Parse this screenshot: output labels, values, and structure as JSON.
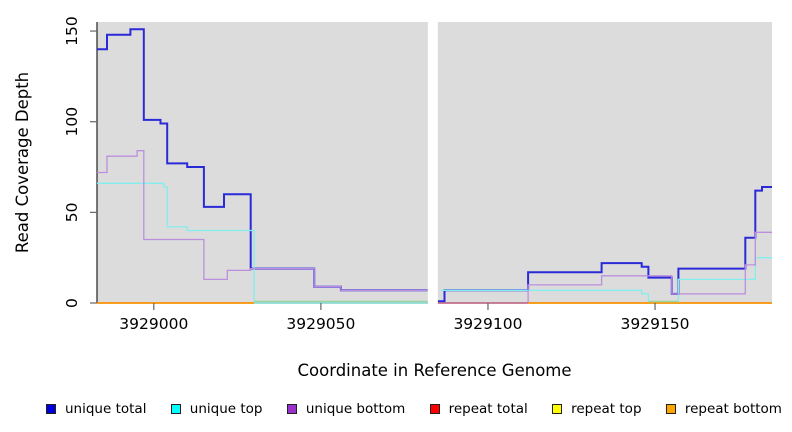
{
  "chart_data": {
    "type": "line",
    "subtype": "step-coverage-plot",
    "title": "",
    "xlabel": "Coordinate in Reference Genome",
    "ylabel": "Read Coverage Depth",
    "xlim": [
      3928983,
      3929185
    ],
    "ylim": [
      0,
      155
    ],
    "x_ticks": [
      3929000,
      3929050,
      3929100,
      3929150
    ],
    "y_ticks": [
      0,
      50,
      100,
      150
    ],
    "grid": false,
    "legend_position": "bottom",
    "panel_bg": "#DCDCDC",
    "axis_color": "#222222",
    "tick_color": "#666666",
    "gap_x": [
      3929082,
      3929085
    ],
    "series": [
      {
        "name": "unique total",
        "line_color": "#2A2AD8",
        "swatch_color": "#0000DC",
        "line_width": 2,
        "runs": [
          {
            "points": [
              [
                3928983,
                140
              ],
              [
                3928986,
                148
              ],
              [
                3928993,
                151
              ],
              [
                3928997,
                101
              ],
              [
                3929002,
                99
              ],
              [
                3929004,
                77
              ],
              [
                3929010,
                75
              ],
              [
                3929015,
                53
              ],
              [
                3929021,
                60
              ],
              [
                3929029,
                19
              ],
              [
                3929048,
                9
              ],
              [
                3929056,
                7
              ]
            ],
            "end": 3929082
          },
          {
            "points": [
              [
                3929085,
                1
              ],
              [
                3929087,
                7
              ],
              [
                3929112,
                17
              ],
              [
                3929134,
                22
              ],
              [
                3929146,
                20
              ],
              [
                3929148,
                14
              ],
              [
                3929155,
                5
              ],
              [
                3929157,
                19
              ],
              [
                3929177,
                36
              ],
              [
                3929180,
                62
              ],
              [
                3929182,
                64
              ]
            ],
            "end": 3929185
          }
        ]
      },
      {
        "name": "unique top",
        "line_color": "#82EEEE",
        "swatch_color": "#00FFFF",
        "line_width": 1.3,
        "runs": [
          {
            "points": [
              [
                3928983,
                66
              ],
              [
                3929003,
                64
              ],
              [
                3929004,
                42
              ],
              [
                3929010,
                40
              ],
              [
                3929030,
                0
              ]
            ],
            "end": 3929082
          },
          {
            "points": [
              [
                3929086,
                7
              ],
              [
                3929146,
                5
              ],
              [
                3929148,
                0
              ],
              [
                3929157,
                13
              ],
              [
                3929180,
                25
              ]
            ],
            "end": 3929185
          }
        ]
      },
      {
        "name": "unique bottom",
        "line_color": "#BB8FDE",
        "swatch_color": "#9932CC",
        "line_width": 1.3,
        "runs": [
          {
            "points": [
              [
                3928983,
                72
              ],
              [
                3928986,
                81
              ],
              [
                3928995,
                84
              ],
              [
                3928997,
                35
              ],
              [
                3929015,
                13
              ],
              [
                3929022,
                18
              ],
              [
                3929029,
                19
              ],
              [
                3929048,
                9
              ],
              [
                3929056,
                7
              ]
            ],
            "end": 3929082
          },
          {
            "points": [
              [
                3929085,
                0
              ],
              [
                3929112,
                10
              ],
              [
                3929134,
                15
              ],
              [
                3929155,
                5
              ],
              [
                3929177,
                21
              ],
              [
                3929180,
                39
              ]
            ],
            "end": 3929185
          }
        ]
      },
      {
        "name": "repeat total",
        "line_color": "#CC6080",
        "swatch_color": "#FF0000",
        "line_width": 1.2,
        "runs": [
          {
            "points": [
              [
                3929085,
                0
              ]
            ],
            "end": 3929112
          }
        ]
      },
      {
        "name": "repeat bottom",
        "line_color": "#FF9808",
        "swatch_color": "#FFA500",
        "line_width": 1.8,
        "runs": [
          {
            "points": [
              [
                3928983,
                0
              ]
            ],
            "end": 3929030
          },
          {
            "points": [
              [
                3929112,
                0
              ]
            ],
            "end": 3929185
          }
        ]
      },
      {
        "name": "repeat top",
        "line_color": "#9CD49E",
        "swatch_color": "#FFFF00",
        "line_width": 1.4,
        "runs": [
          {
            "points": [
              [
                3929030,
                0.8
              ]
            ],
            "end": 3929082
          },
          {
            "points": [
              [
                3929148,
                0.8
              ]
            ],
            "end": 3929157
          }
        ]
      }
    ],
    "legend_order": [
      "unique total",
      "unique top",
      "unique bottom",
      "repeat total",
      "repeat top",
      "repeat bottom"
    ]
  }
}
